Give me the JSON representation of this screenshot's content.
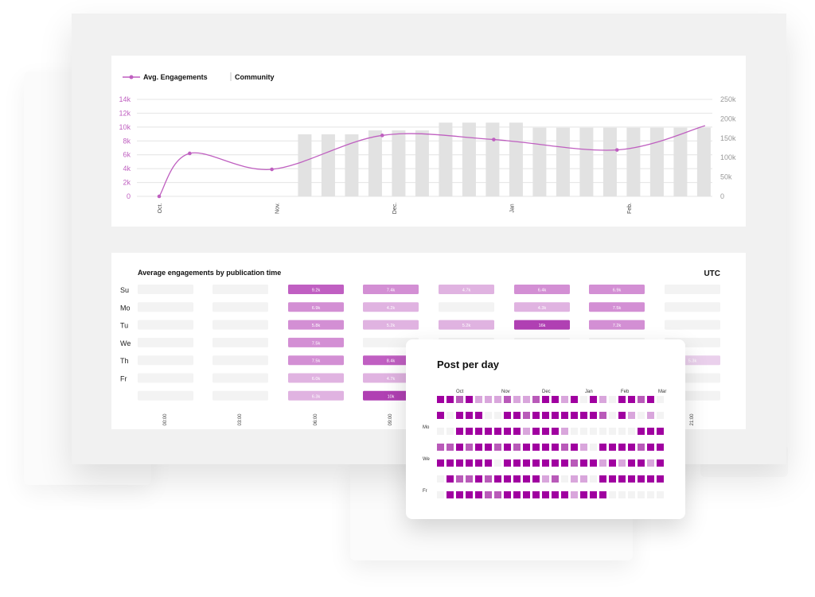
{
  "colors": {
    "accent": "#bf5fc0",
    "bar": "#e2e2e2",
    "grid": "#e4e4e4",
    "cell_empty": "#f3f3f3",
    "heat_scale": [
      "#ead0ec",
      "#e0b3e1",
      "#d38fd4",
      "#c05fc2",
      "#b040b3"
    ],
    "ppd_scale": [
      "#f3f3f3",
      "#d9a6dc",
      "#b95ab9",
      "#a000a0"
    ]
  },
  "chart_data": [
    {
      "type": "line",
      "title": "",
      "legend": {
        "position": "top-left",
        "entries": [
          "Avg. Engagements",
          "Community"
        ]
      },
      "x_ticks": [
        "Oct.",
        "Nov.",
        "Dec.",
        "Jan",
        "Feb."
      ],
      "y_left": {
        "ticks": [
          "0",
          "2k",
          "4k",
          "6k",
          "8k",
          "10k",
          "12k",
          "14k"
        ],
        "range": [
          0,
          14000
        ]
      },
      "y_right": {
        "ticks": [
          "0",
          "50k",
          "100k",
          "150k",
          "200k",
          "250k"
        ],
        "range": [
          0,
          250000
        ]
      },
      "grid": true,
      "series": [
        {
          "name": "Avg. Engagements",
          "kind": "line",
          "axis": "left",
          "points": [
            [
              0,
              0
            ],
            [
              0.26,
              6200
            ],
            [
              0.96,
              3900
            ],
            [
              1.9,
              8800
            ],
            [
              2.85,
              8200
            ],
            [
              3.9,
              6700
            ],
            [
              4.65,
              10200
            ]
          ],
          "markers": [
            [
              0,
              0
            ],
            [
              0.26,
              6200
            ],
            [
              0.96,
              3900
            ],
            [
              1.9,
              8800
            ],
            [
              2.85,
              8200
            ],
            [
              3.9,
              6700
            ]
          ]
        },
        {
          "name": "Community",
          "kind": "bar",
          "axis": "right",
          "x": [
            1.24,
            1.44,
            1.64,
            1.84,
            2.04,
            2.24,
            2.44,
            2.64,
            2.84,
            3.04,
            3.24,
            3.44,
            3.64,
            3.84,
            4.04,
            4.24,
            4.44,
            4.64
          ],
          "values": [
            160000,
            160000,
            160000,
            170000,
            170000,
            170000,
            190000,
            190000,
            190000,
            190000,
            177000,
            177000,
            177000,
            177000,
            177000,
            177000,
            177000,
            177000
          ]
        }
      ]
    },
    {
      "type": "heatmap",
      "title": "Average engagements by publication time",
      "timezone": "UTC",
      "rows": [
        "Su",
        "Mo",
        "Tu",
        "We",
        "Th",
        "Fr",
        ""
      ],
      "columns": [
        "00:00",
        "03:00",
        "06:00",
        "09:00",
        "12:00",
        "15:00",
        "18:00",
        "21:00"
      ],
      "cells": [
        [
          null,
          null,
          "9.2k",
          "7.4k",
          "4.7k",
          "6.4k",
          "6.9k",
          null
        ],
        [
          null,
          null,
          "6.9k",
          "4.2k",
          null,
          "4.3k",
          "7.5k",
          null
        ],
        [
          null,
          null,
          "5.8k",
          "5.2k",
          "5.2k",
          "16k",
          "7.2k",
          null
        ],
        [
          null,
          null,
          "7.5k",
          null,
          null,
          null,
          null,
          null
        ],
        [
          null,
          null,
          "7.5k",
          "8.4k",
          null,
          null,
          null,
          "5.3k"
        ],
        [
          null,
          null,
          "6.0k",
          "4.7k",
          null,
          null,
          null,
          null
        ],
        [
          null,
          null,
          "6.3k",
          "10k",
          null,
          null,
          null,
          null
        ]
      ],
      "levels": [
        [
          0,
          0,
          4,
          3,
          2,
          3,
          3,
          0
        ],
        [
          0,
          0,
          3,
          2,
          0,
          2,
          3,
          0
        ],
        [
          0,
          0,
          3,
          2,
          2,
          5,
          3,
          0
        ],
        [
          0,
          0,
          3,
          0,
          0,
          0,
          0,
          0
        ],
        [
          0,
          0,
          3,
          4,
          0,
          0,
          0,
          1
        ],
        [
          0,
          0,
          2,
          2,
          0,
          0,
          0,
          0
        ],
        [
          0,
          0,
          2,
          5,
          0,
          0,
          0,
          0
        ]
      ]
    },
    {
      "type": "heatmap",
      "title": "Post per day",
      "month_labels": [
        "Oct",
        "Nov",
        "Dec",
        "Jan",
        "Feb",
        "Mar"
      ],
      "row_labels": [
        "",
        "Mo",
        "",
        "We",
        "",
        "Fr",
        ""
      ],
      "levels": [
        [
          3,
          3,
          2,
          3,
          1,
          1,
          1,
          2,
          1,
          1,
          2,
          3,
          3,
          1,
          3,
          0,
          3,
          1,
          0,
          3,
          3,
          2,
          3,
          0
        ],
        [
          3,
          0,
          3,
          3,
          3,
          0,
          0,
          3,
          3,
          2,
          3,
          3,
          3,
          3,
          3,
          3,
          3,
          2,
          0,
          3,
          1,
          0,
          1,
          0
        ],
        [
          0,
          0,
          3,
          3,
          3,
          3,
          3,
          3,
          3,
          1,
          3,
          3,
          3,
          1,
          0,
          0,
          0,
          0,
          0,
          0,
          0,
          3,
          3,
          3
        ],
        [
          2,
          2,
          3,
          2,
          3,
          3,
          2,
          3,
          2,
          3,
          3,
          3,
          3,
          2,
          3,
          1,
          0,
          3,
          3,
          3,
          3,
          2,
          3,
          3
        ],
        [
          3,
          3,
          3,
          3,
          3,
          3,
          0,
          3,
          3,
          3,
          3,
          3,
          3,
          3,
          2,
          3,
          3,
          1,
          3,
          1,
          3,
          3,
          1,
          3
        ],
        [
          0,
          3,
          2,
          2,
          3,
          2,
          3,
          3,
          3,
          3,
          3,
          1,
          2,
          0,
          1,
          1,
          0,
          3,
          3,
          3,
          3,
          3,
          3,
          3
        ],
        [
          0,
          3,
          3,
          3,
          3,
          2,
          2,
          3,
          3,
          3,
          3,
          3,
          3,
          3,
          1,
          3,
          3,
          3,
          0,
          0,
          0,
          0,
          0,
          0
        ]
      ]
    }
  ]
}
